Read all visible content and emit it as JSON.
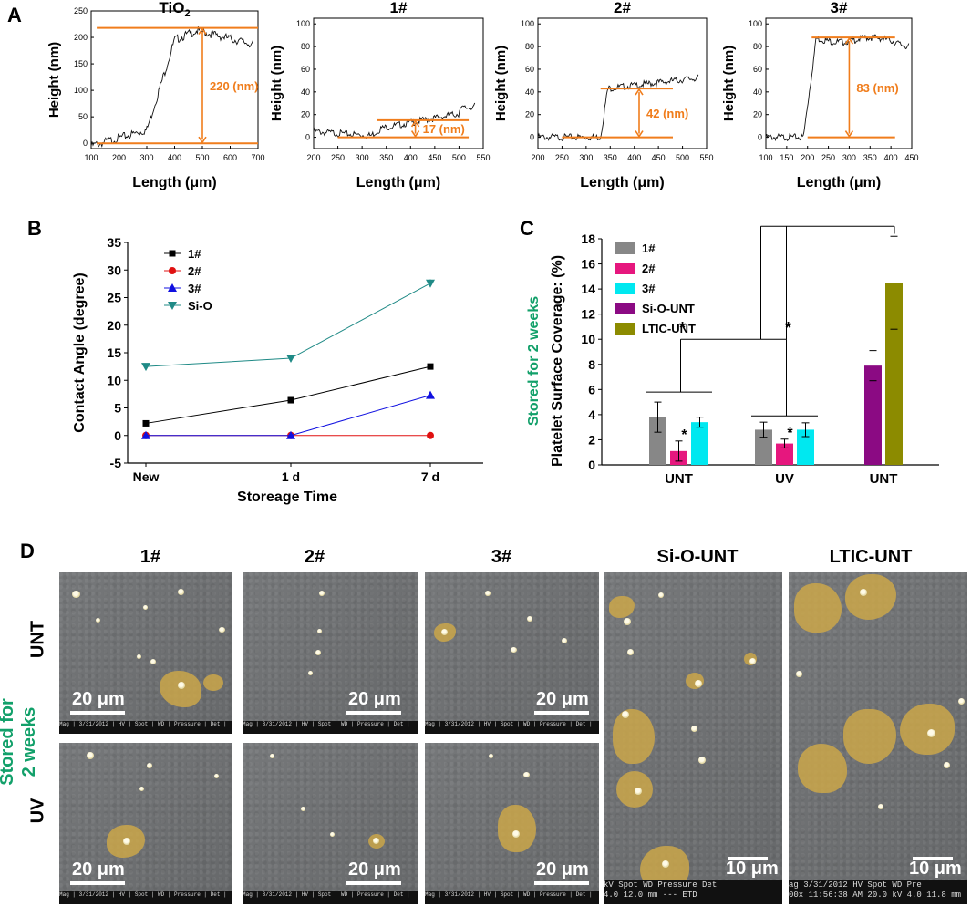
{
  "panel_labels": {
    "a": "A",
    "b": "B",
    "c": "C",
    "d": "D"
  },
  "colors": {
    "orange": "#f07d1c",
    "green": "#12a06a",
    "teal": "#2a9a8a",
    "magenta": "#e6177e",
    "cyan": "#00e8f0",
    "purple": "#8b0a83",
    "olive": "#8c8b00",
    "gray_bar": "#878787"
  },
  "profiles": [
    {
      "title": "TiO",
      "title_sub": "2",
      "xlabel": "Length (μm)",
      "ylabel": "Height (nm)",
      "xticks": [
        "100",
        "200",
        "300",
        "400",
        "500",
        "600",
        "700"
      ],
      "yticks": [
        "0",
        "50",
        "100",
        "150",
        "200",
        "250"
      ],
      "annotation": "220 (nm)"
    },
    {
      "title": "1#",
      "title_sub": "",
      "xlabel": "Length (μm)",
      "ylabel": "Height (nm)",
      "xticks": [
        "200",
        "250",
        "300",
        "350",
        "400",
        "450",
        "500",
        "550"
      ],
      "yticks": [
        "0",
        "20",
        "40",
        "60",
        "80",
        "100"
      ],
      "annotation": "17 (nm)"
    },
    {
      "title": "2#",
      "title_sub": "",
      "xlabel": "Length (μm)",
      "ylabel": "Height (nm)",
      "xticks": [
        "200",
        "250",
        "300",
        "350",
        "400",
        "450",
        "500",
        "550"
      ],
      "yticks": [
        "0",
        "20",
        "40",
        "60",
        "80",
        "100"
      ],
      "annotation": "42 (nm)"
    },
    {
      "title": "3#",
      "title_sub": "",
      "xlabel": "Length (μm)",
      "ylabel": "Height (nm)",
      "xticks": [
        "100",
        "150",
        "200",
        "250",
        "300",
        "350",
        "400",
        "450"
      ],
      "yticks": [
        "0",
        "20",
        "40",
        "60",
        "80",
        "100"
      ],
      "annotation": "83 (nm)"
    }
  ],
  "chart_data": [
    {
      "type": "line",
      "panel": "B",
      "title": "",
      "xlabel": "Storeage Time",
      "ylabel": "Contact Angle (degree)",
      "categories": [
        "New",
        "1 d",
        "7 d"
      ],
      "ylim": [
        -5,
        35
      ],
      "yticks": [
        "-5",
        "0",
        "5",
        "10",
        "15",
        "20",
        "25",
        "30",
        "35"
      ],
      "series": [
        {
          "name": "1#",
          "values": [
            2.2,
            6.4,
            12.5
          ],
          "color": "#000000",
          "marker": "square"
        },
        {
          "name": "2#",
          "values": [
            0,
            0,
            0
          ],
          "color": "#e01010",
          "marker": "circle"
        },
        {
          "name": "3#",
          "values": [
            0,
            0,
            7.3
          ],
          "color": "#1010e0",
          "marker": "triangle-up"
        },
        {
          "name": "Si-O",
          "values": [
            12.5,
            14.0,
            27.6
          ],
          "color": "#1f8a86",
          "marker": "triangle-down"
        }
      ]
    },
    {
      "type": "bar",
      "panel": "C",
      "title": "",
      "ylabel": "Platelet  Surface Coverage: (%)",
      "side_label": "Stored for 2 weeks",
      "ylim": [
        0,
        18
      ],
      "yticks": [
        "0",
        "2",
        "4",
        "6",
        "8",
        "10",
        "12",
        "14",
        "16",
        "18"
      ],
      "groups": [
        {
          "label": "UNT",
          "bars": [
            {
              "name": "1#",
              "value": 3.8,
              "err": 1.2
            },
            {
              "name": "2#",
              "value": 1.1,
              "err": 0.8
            },
            {
              "name": "3#",
              "value": 3.4,
              "err": 0.4
            }
          ]
        },
        {
          "label": "UV",
          "bars": [
            {
              "name": "1#",
              "value": 2.8,
              "err": 0.6
            },
            {
              "name": "2#",
              "value": 1.7,
              "err": 0.35
            },
            {
              "name": "3#",
              "value": 2.8,
              "err": 0.55
            }
          ]
        },
        {
          "label": "UNT",
          "bars": [
            {
              "name": "Si-O-UNT",
              "value": 7.9,
              "err": 1.2
            },
            {
              "name": "LTIC-UNT",
              "value": 14.5,
              "err": 3.7
            }
          ]
        }
      ],
      "legend": [
        "1#",
        "2#",
        "3#",
        "Si-O-UNT",
        "LTIC-UNT"
      ],
      "significance": "*"
    }
  ],
  "sem": {
    "columns": [
      "1#",
      "2#",
      "3#",
      "Si-O-UNT",
      "LTIC-UNT"
    ],
    "rows": [
      "UNT",
      "UV"
    ],
    "side_label_line1": "Stored for",
    "side_label_line2": "2 weeks",
    "scale_20": "20 μm",
    "scale_10": "10 μm",
    "footer_small": "Mag | 3/31/2012 | HV | Spot | WD | Pressure | Det |",
    "footer_sio": "kV  Spot   WD   Pressure  Det",
    "footer_sio_2": "4.0  12.0 mm   ---   ETD",
    "footer_ltic": "ag  3/31/2012  HV  Spot  WD  Pre",
    "footer_ltic_2": "00x 11:56:38 AM  20.0 kV  4.0  11.8 mm"
  }
}
